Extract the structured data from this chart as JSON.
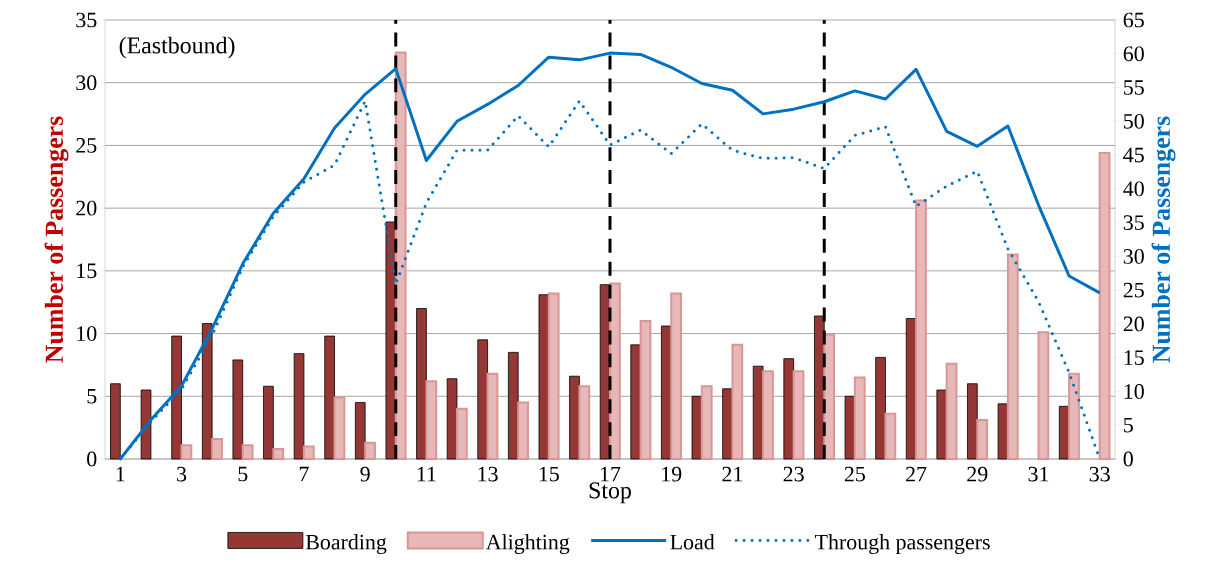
{
  "chart_data": {
    "type": "bar",
    "annotations": [
      "(Eastbound)"
    ],
    "xlabel": "Stop",
    "ylabel": "Number of Passengers",
    "y2label": "Number of Passengers",
    "x": [
      1,
      2,
      3,
      4,
      5,
      6,
      7,
      8,
      9,
      10,
      11,
      12,
      13,
      14,
      15,
      16,
      17,
      18,
      19,
      20,
      21,
      22,
      23,
      24,
      25,
      26,
      27,
      28,
      29,
      30,
      31,
      32,
      33
    ],
    "xlim": [
      0.5,
      33.5
    ],
    "xticks": [
      1,
      3,
      5,
      7,
      9,
      11,
      13,
      15,
      17,
      19,
      21,
      23,
      25,
      27,
      29,
      31,
      33
    ],
    "ylim": [
      0,
      35
    ],
    "yticks": [
      0,
      5,
      10,
      15,
      20,
      25,
      30,
      35
    ],
    "y2lim": [
      0,
      65
    ],
    "y2ticks": [
      0,
      5,
      10,
      15,
      20,
      25,
      30,
      35,
      40,
      45,
      50,
      55,
      60,
      65
    ],
    "grid": "y",
    "legend": "bottom",
    "marker": "none",
    "ref_lines": [
      {
        "axis": "x",
        "value": 10,
        "color": "#000000",
        "line_style": "dashed"
      },
      {
        "axis": "x",
        "value": 17,
        "color": "#000000",
        "line_style": "dashed"
      },
      {
        "axis": "x",
        "value": 24,
        "color": "#000000",
        "line_style": "dashed"
      }
    ],
    "series": [
      {
        "name": "Boarding",
        "color": "#953735",
        "values": [
          6.0,
          5.5,
          9.8,
          10.8,
          7.9,
          5.8,
          8.4,
          9.8,
          4.5,
          18.9,
          12.0,
          6.4,
          9.5,
          8.5,
          13.1,
          6.6,
          13.9,
          9.1,
          10.6,
          5.0,
          5.6,
          7.4,
          8.0,
          11.4,
          5.0,
          8.1,
          11.2,
          5.5,
          6.0,
          4.4,
          null,
          4.2,
          null
        ]
      },
      {
        "name": "Alighting",
        "color": "#e6b9b8",
        "values": [
          null,
          null,
          1.1,
          1.6,
          1.1,
          0.8,
          1.0,
          4.9,
          1.3,
          32.4,
          6.2,
          4.0,
          6.8,
          4.5,
          13.2,
          5.8,
          14.0,
          11.0,
          13.2,
          5.8,
          9.1,
          7.0,
          7.0,
          9.9,
          6.5,
          3.6,
          20.6,
          7.6,
          3.1,
          16.3,
          10.1,
          6.8,
          24.4
        ]
      },
      {
        "name": "Load",
        "type": "line",
        "axis": "y2",
        "color": "#0070c0",
        "line_style": "solid",
        "values": [
          0,
          5.8,
          10.8,
          19.3,
          28.9,
          36.4,
          41.5,
          49,
          54,
          57.8,
          44.2,
          50,
          52.5,
          55.3,
          59.5,
          59.1,
          60.1,
          59.9,
          58,
          55.6,
          54.6,
          51.1,
          51.8,
          52.9,
          54.5,
          53.3,
          57.7,
          48.5,
          46.3,
          49.3,
          37.6,
          27.1,
          24.6
        ]
      },
      {
        "name": "Through passengers",
        "type": "line",
        "axis": "y2",
        "color": "#0070c0",
        "line_style": "dotted",
        "values": [
          0,
          5.5,
          10.3,
          18.3,
          28.4,
          35.9,
          41,
          43.5,
          53,
          25.9,
          37.9,
          45.7,
          45.7,
          50.8,
          46.2,
          53,
          46.5,
          48.7,
          45.2,
          49.6,
          45.7,
          44.5,
          44.6,
          43,
          47.9,
          49.2,
          37.4,
          40.4,
          42.6,
          31.1,
          23.3,
          12.8,
          0
        ]
      }
    ]
  }
}
